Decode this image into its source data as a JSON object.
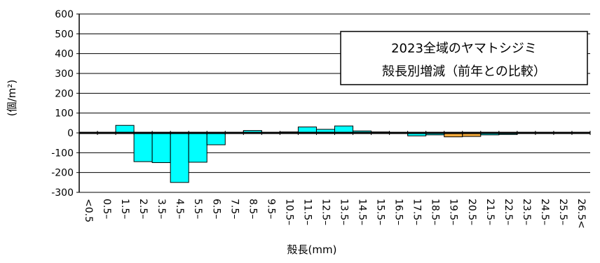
{
  "chart_data": {
    "type": "bar",
    "title_lines": [
      "2023全域のヤマトシジミ",
      "殻長別増減（前年との比較）"
    ],
    "xlabel": "殻長(mm)",
    "ylabel": "(個/m²)",
    "ylim": [
      -300,
      600
    ],
    "yticks": [
      600,
      500,
      400,
      300,
      200,
      100,
      0,
      -100,
      -200,
      -300
    ],
    "grid": true,
    "categories": [
      "<0.5",
      "0.5–",
      "1.5–",
      "2.5–",
      "3.5–",
      "4.5–",
      "5.5–",
      "6.5–",
      "7.5–",
      "8.5–",
      "9.5–",
      "10.5–",
      "11.5–",
      "12.5–",
      "13.5–",
      "14.5–",
      "15.5–",
      "16.5–",
      "17.5–",
      "18.5–",
      "19.5–",
      "20.5–",
      "21.5–",
      "22.5–",
      "23.5–",
      "24.5–",
      "25.5–",
      "26.5<"
    ],
    "values": [
      0,
      0,
      38,
      -145,
      -150,
      -250,
      -148,
      -60,
      0,
      12,
      0,
      5,
      30,
      18,
      35,
      10,
      5,
      0,
      -15,
      -10,
      -20,
      -18,
      -10,
      -8,
      0,
      0,
      0,
      0
    ],
    "colors": {
      "positive": "#00ffff",
      "negative_small": "#00ffff",
      "negative_large": "#f2a93b",
      "edge": "#000000"
    }
  }
}
